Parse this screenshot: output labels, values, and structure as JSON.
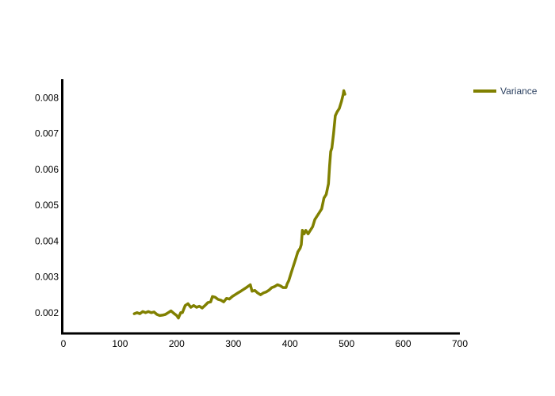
{
  "chart_data": {
    "type": "line",
    "title": "",
    "xlabel": "",
    "ylabel": "",
    "xlim": [
      0,
      700
    ],
    "ylim": [
      0.00142,
      0.00852
    ],
    "grid": false,
    "legend_position": "top-right",
    "x_ticks": [
      0,
      100,
      200,
      300,
      400,
      500,
      600,
      700
    ],
    "x_tick_labels": [
      "0",
      "100",
      "200",
      "300",
      "400",
      "500",
      "600",
      "700"
    ],
    "y_ticks": [
      0.002,
      0.003,
      0.004,
      0.005,
      0.006,
      0.007,
      0.008
    ],
    "y_tick_labels": [
      "0.002",
      "0.003",
      "0.004",
      "0.005",
      "0.006",
      "0.007",
      "0.008"
    ],
    "series": [
      {
        "name": "Variance",
        "color": "#808000",
        "x": [
          125,
          130,
          135,
          140,
          145,
          150,
          155,
          160,
          165,
          170,
          175,
          180,
          185,
          190,
          195,
          200,
          203,
          207,
          210,
          215,
          220,
          225,
          230,
          235,
          240,
          245,
          250,
          255,
          260,
          263,
          268,
          273,
          278,
          283,
          288,
          293,
          298,
          303,
          308,
          313,
          318,
          323,
          330,
          333,
          338,
          343,
          348,
          353,
          358,
          363,
          368,
          373,
          378,
          383,
          388,
          393,
          395,
          398,
          402,
          406,
          410,
          414,
          418,
          420,
          422,
          425,
          428,
          432,
          436,
          440,
          444,
          448,
          452,
          456,
          460,
          464,
          468,
          470,
          472,
          474,
          477,
          480,
          483,
          487,
          491,
          494,
          495,
          497
        ],
        "y": [
          0.00197,
          0.002,
          0.00197,
          0.00203,
          0.002,
          0.00203,
          0.002,
          0.00202,
          0.00195,
          0.00192,
          0.00193,
          0.00195,
          0.002,
          0.00205,
          0.00198,
          0.00192,
          0.00185,
          0.002,
          0.002,
          0.0022,
          0.00225,
          0.00215,
          0.0022,
          0.00215,
          0.00218,
          0.00213,
          0.0022,
          0.00228,
          0.0023,
          0.00245,
          0.00243,
          0.00237,
          0.00235,
          0.0023,
          0.0024,
          0.00238,
          0.00245,
          0.0025,
          0.00255,
          0.0026,
          0.00265,
          0.0027,
          0.00278,
          0.0026,
          0.00262,
          0.00255,
          0.0025,
          0.00255,
          0.00258,
          0.00263,
          0.0027,
          0.00273,
          0.00278,
          0.00275,
          0.0027,
          0.0027,
          0.0028,
          0.0029,
          0.0031,
          0.0033,
          0.0035,
          0.0037,
          0.0038,
          0.0039,
          0.0043,
          0.0042,
          0.0043,
          0.0042,
          0.0043,
          0.0044,
          0.0046,
          0.0047,
          0.0048,
          0.0049,
          0.0052,
          0.0053,
          0.0056,
          0.0061,
          0.0065,
          0.0066,
          0.007,
          0.0075,
          0.0076,
          0.0077,
          0.0079,
          0.0081,
          0.0082,
          0.0081
        ]
      }
    ]
  }
}
